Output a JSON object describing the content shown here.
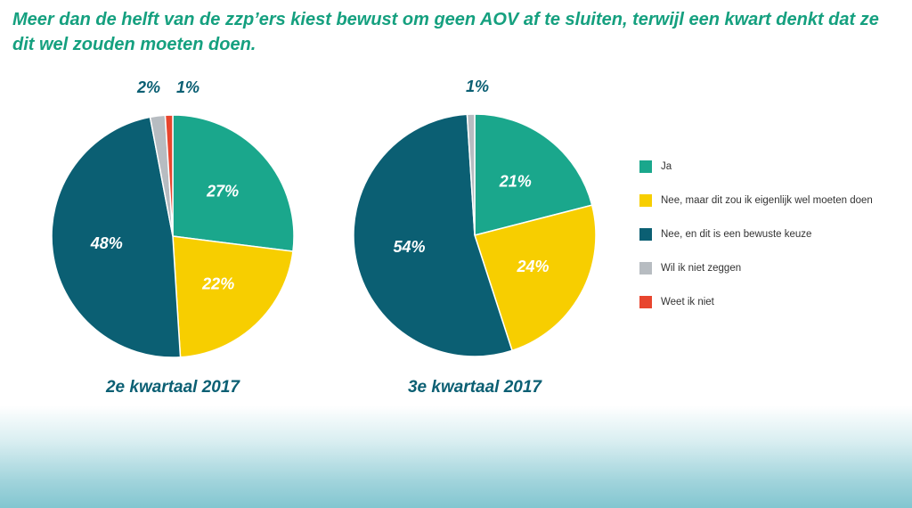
{
  "title": "Meer dan de helft van de zzp’ers kiest bewust om geen AOV af te sluiten, terwijl een kwart denkt dat ze dit wel zouden moeten doen.",
  "colors": {
    "ja": "#1aa78c",
    "nee_moeten": "#f7ce00",
    "nee_bewust": "#0b5f73",
    "wil_niet": "#b7bcc1",
    "weet_niet": "#e8452e",
    "title": "#15a07f"
  },
  "legend": [
    {
      "label": "Ja",
      "color": "#1aa78c"
    },
    {
      "label": "Nee, maar dit zou ik eigenlijk wel moeten doen",
      "color": "#f7ce00"
    },
    {
      "label": "Nee, en dit is een bewuste keuze",
      "color": "#0b5f73"
    },
    {
      "label": "Wil ik niet zeggen",
      "color": "#b7bcc1"
    },
    {
      "label": "Weet ik niet",
      "color": "#e8452e"
    }
  ],
  "chart_data": [
    {
      "type": "pie",
      "title": "2e kwartaal 2017",
      "slices": [
        {
          "label": "Ja",
          "value": 27,
          "text": "27%",
          "color": "#1aa78c"
        },
        {
          "label": "Nee, maar dit zou ik eigenlijk wel moeten doen",
          "value": 22,
          "text": "22%",
          "color": "#f7ce00"
        },
        {
          "label": "Nee, en dit is een bewuste keuze",
          "value": 48,
          "text": "48%",
          "color": "#0b5f73"
        },
        {
          "label": "Wil ik niet zeggen",
          "value": 2,
          "text": "2%",
          "color": "#b7bcc1"
        },
        {
          "label": "Weet ik niet",
          "value": 1,
          "text": "1%",
          "color": "#e8452e"
        }
      ]
    },
    {
      "type": "pie",
      "title": "3e kwartaal 2017",
      "slices": [
        {
          "label": "Ja",
          "value": 21,
          "text": "21%",
          "color": "#1aa78c"
        },
        {
          "label": "Nee, maar dit zou ik eigenlijk wel moeten doen",
          "value": 24,
          "text": "24%",
          "color": "#f7ce00"
        },
        {
          "label": "Nee, en dit is een bewuste keuze",
          "value": 54,
          "text": "54%",
          "color": "#0b5f73"
        },
        {
          "label": "Wil ik niet zeggen",
          "value": 1,
          "text": "1%",
          "color": "#b7bcc1"
        }
      ]
    }
  ]
}
